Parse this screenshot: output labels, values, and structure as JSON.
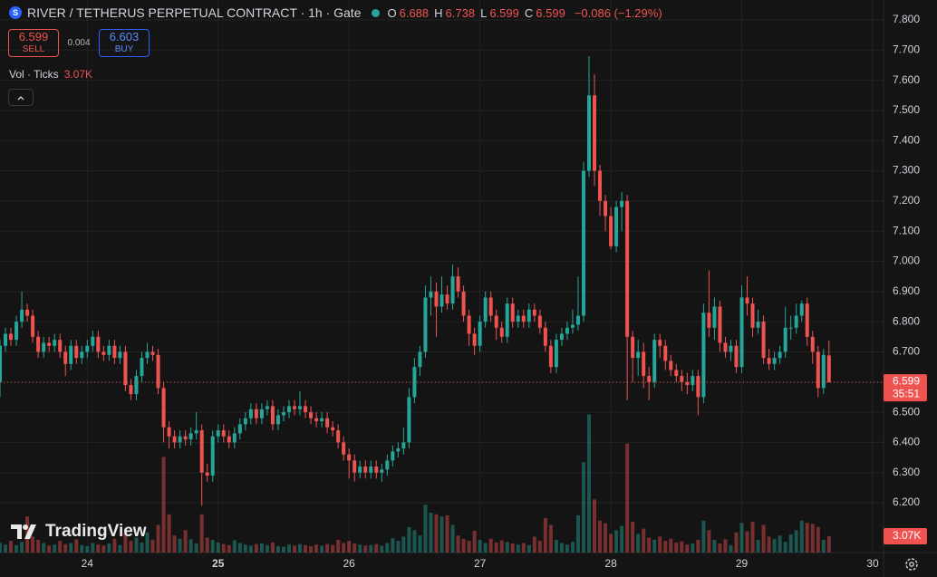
{
  "chart_data": {
    "type": "candlestick",
    "title": "RIVER / TETHERUS PERPETUAL CONTRACT · 1h · Gate",
    "ohlc_labels": [
      "O",
      "H",
      "L",
      "C"
    ],
    "change": "−0.086 (−1.29%)",
    "sell_price": 6.599,
    "sell_label": "SELL",
    "spread": 0.004,
    "buy_price": 6.603,
    "buy_label": "BUY",
    "volume_name": "Vol · Ticks",
    "volume_last_label": "3.07K",
    "countdown": "35:51",
    "brand": "TradingView",
    "up_color": "#26a69a",
    "down_color": "#ef5350",
    "open": [
      6.6,
      6.72,
      6.76,
      6.74,
      6.8,
      6.84,
      6.82,
      6.75,
      6.7,
      6.73,
      6.72,
      6.74,
      6.7,
      6.66,
      6.72,
      6.68,
      6.7,
      6.72,
      6.75,
      6.7,
      6.69,
      6.72,
      6.68,
      6.7,
      6.59,
      6.56,
      6.62,
      6.68,
      6.7,
      6.69,
      6.58,
      6.45,
      6.42,
      6.4,
      6.42,
      6.41,
      6.43,
      6.44,
      6.3,
      6.29,
      6.42,
      6.44,
      6.42,
      6.4,
      6.43,
      6.46,
      6.48,
      6.51,
      6.48,
      6.51,
      6.52,
      6.46,
      6.49,
      6.5,
      6.52,
      6.51,
      6.52,
      6.5,
      6.48,
      6.47,
      6.48,
      6.45,
      6.44,
      6.4,
      6.36,
      6.34,
      6.3,
      6.32,
      6.3,
      6.32,
      6.3,
      6.31,
      6.34,
      6.37,
      6.38,
      6.4,
      6.55,
      6.65,
      6.7,
      6.88,
      6.9,
      6.85,
      6.89,
      6.86,
      6.95,
      6.9,
      6.82,
      6.76,
      6.72,
      6.8,
      6.88,
      6.82,
      6.78,
      6.75,
      6.86,
      6.8,
      6.82,
      6.8,
      6.84,
      6.82,
      6.78,
      6.72,
      6.65,
      6.74,
      6.76,
      6.78,
      6.79,
      6.82,
      7.3,
      7.55,
      7.3,
      7.2,
      7.15,
      7.05,
      7.18,
      7.2,
      6.75,
      6.68,
      6.7,
      6.62,
      6.6,
      6.74,
      6.72,
      6.67,
      6.64,
      6.62,
      6.6,
      6.59,
      6.62,
      6.55,
      6.83,
      6.78,
      6.85,
      6.73,
      6.7,
      6.72,
      6.65,
      6.88,
      6.86,
      6.78,
      6.8,
      6.68,
      6.66,
      6.68,
      6.7,
      6.78,
      6.78,
      6.82,
      6.86,
      6.75,
      6.7,
      6.58,
      6.688
    ],
    "high": [
      6.74,
      6.78,
      6.78,
      6.82,
      6.9,
      6.86,
      6.84,
      6.77,
      6.75,
      6.75,
      6.76,
      6.76,
      6.72,
      6.74,
      6.74,
      6.72,
      6.74,
      6.77,
      6.77,
      6.72,
      6.74,
      6.74,
      6.72,
      6.72,
      6.61,
      6.64,
      6.7,
      6.73,
      6.72,
      6.71,
      6.6,
      6.47,
      6.44,
      6.44,
      6.44,
      6.45,
      6.5,
      6.46,
      6.33,
      6.44,
      6.46,
      6.46,
      6.44,
      6.45,
      6.48,
      6.5,
      6.53,
      6.53,
      6.53,
      6.54,
      6.54,
      6.51,
      6.52,
      6.54,
      6.54,
      6.57,
      6.54,
      6.52,
      6.5,
      6.5,
      6.5,
      6.47,
      6.46,
      6.42,
      6.38,
      6.36,
      6.34,
      6.34,
      6.34,
      6.34,
      6.33,
      6.36,
      6.39,
      6.4,
      6.45,
      6.58,
      6.68,
      6.72,
      6.92,
      6.95,
      6.93,
      6.95,
      6.92,
      6.99,
      6.98,
      6.92,
      6.84,
      6.78,
      6.82,
      6.9,
      6.9,
      6.84,
      6.8,
      6.88,
      6.88,
      6.84,
      6.84,
      6.86,
      6.86,
      6.84,
      6.8,
      6.74,
      6.76,
      6.78,
      6.8,
      6.84,
      6.95,
      7.33,
      7.68,
      7.62,
      7.32,
      7.22,
      7.18,
      7.2,
      7.23,
      7.22,
      6.77,
      6.74,
      6.73,
      6.65,
      6.76,
      6.76,
      6.74,
      6.69,
      6.66,
      6.64,
      6.63,
      6.64,
      6.64,
      6.86,
      6.97,
      6.88,
      6.87,
      6.75,
      6.74,
      6.74,
      6.92,
      6.95,
      6.88,
      6.84,
      6.82,
      6.71,
      6.7,
      6.72,
      6.85,
      6.82,
      6.86,
      6.87,
      6.88,
      6.77,
      6.72,
      6.71,
      6.738
    ],
    "low": [
      6.55,
      6.7,
      6.72,
      6.72,
      6.78,
      6.8,
      6.73,
      6.68,
      6.68,
      6.7,
      6.7,
      6.68,
      6.62,
      6.64,
      6.66,
      6.66,
      6.68,
      6.7,
      6.68,
      6.67,
      6.67,
      6.66,
      6.66,
      6.57,
      6.54,
      6.54,
      6.6,
      6.66,
      6.67,
      6.56,
      6.4,
      6.38,
      6.38,
      6.38,
      6.39,
      6.39,
      6.41,
      6.19,
      6.27,
      6.27,
      6.4,
      6.4,
      6.38,
      6.38,
      6.41,
      6.44,
      6.46,
      6.46,
      6.46,
      6.49,
      6.44,
      6.44,
      6.47,
      6.48,
      6.49,
      6.49,
      6.48,
      6.46,
      6.45,
      6.45,
      6.43,
      6.42,
      6.38,
      6.34,
      6.28,
      6.27,
      6.28,
      6.28,
      6.28,
      6.28,
      6.27,
      6.29,
      6.32,
      6.35,
      6.36,
      6.38,
      6.53,
      6.62,
      6.68,
      6.82,
      6.75,
      6.83,
      6.84,
      6.84,
      6.88,
      6.8,
      6.72,
      6.69,
      6.7,
      6.78,
      6.8,
      6.74,
      6.73,
      6.73,
      6.78,
      6.78,
      6.78,
      6.78,
      6.8,
      6.76,
      6.7,
      6.63,
      6.63,
      6.72,
      6.74,
      6.76,
      6.77,
      6.8,
      7.28,
      7.25,
      7.15,
      7.1,
      7.04,
      7.03,
      7.1,
      6.54,
      6.6,
      6.62,
      6.58,
      6.54,
      6.58,
      6.68,
      6.64,
      6.62,
      6.6,
      6.57,
      6.56,
      6.57,
      6.49,
      6.53,
      6.75,
      6.74,
      6.7,
      6.68,
      6.67,
      6.63,
      6.63,
      6.82,
      6.75,
      6.76,
      6.66,
      6.64,
      6.64,
      6.66,
      6.68,
      6.74,
      6.76,
      6.8,
      6.72,
      6.66,
      6.55,
      6.56,
      6.599
    ],
    "close": [
      6.72,
      6.76,
      6.74,
      6.8,
      6.84,
      6.82,
      6.75,
      6.7,
      6.73,
      6.72,
      6.74,
      6.7,
      6.66,
      6.72,
      6.68,
      6.7,
      6.72,
      6.75,
      6.7,
      6.69,
      6.72,
      6.68,
      6.7,
      6.59,
      6.56,
      6.62,
      6.68,
      6.7,
      6.69,
      6.58,
      6.45,
      6.42,
      6.4,
      6.42,
      6.41,
      6.43,
      6.44,
      6.3,
      6.29,
      6.42,
      6.44,
      6.42,
      6.4,
      6.43,
      6.46,
      6.48,
      6.51,
      6.48,
      6.51,
      6.52,
      6.46,
      6.49,
      6.5,
      6.52,
      6.51,
      6.52,
      6.5,
      6.48,
      6.47,
      6.48,
      6.45,
      6.44,
      6.4,
      6.36,
      6.34,
      6.3,
      6.32,
      6.3,
      6.32,
      6.3,
      6.31,
      6.34,
      6.37,
      6.38,
      6.4,
      6.55,
      6.65,
      6.7,
      6.88,
      6.9,
      6.85,
      6.89,
      6.86,
      6.95,
      6.9,
      6.82,
      6.76,
      6.72,
      6.8,
      6.88,
      6.82,
      6.78,
      6.75,
      6.86,
      6.8,
      6.82,
      6.8,
      6.84,
      6.82,
      6.78,
      6.72,
      6.65,
      6.74,
      6.76,
      6.78,
      6.79,
      6.82,
      7.3,
      7.55,
      7.3,
      7.2,
      7.15,
      7.05,
      7.18,
      7.2,
      6.75,
      6.68,
      6.7,
      6.62,
      6.6,
      6.74,
      6.72,
      6.67,
      6.64,
      6.62,
      6.6,
      6.59,
      6.62,
      6.55,
      6.83,
      6.78,
      6.85,
      6.73,
      6.7,
      6.72,
      6.65,
      6.88,
      6.86,
      6.78,
      6.8,
      6.68,
      6.66,
      6.68,
      6.7,
      6.78,
      6.78,
      6.82,
      6.86,
      6.75,
      6.7,
      6.58,
      6.69,
      6.599
    ],
    "volume": [
      1800,
      1500,
      2200,
      1400,
      2000,
      6800,
      3000,
      2400,
      1800,
      1300,
      1500,
      2200,
      1600,
      1800,
      2500,
      1400,
      1200,
      1800,
      1500,
      1300,
      1700,
      2600,
      1400,
      3600,
      2200,
      2800,
      1900,
      3800,
      2400,
      5200,
      18000,
      7200,
      3200,
      2600,
      4200,
      2500,
      1700,
      7200,
      2800,
      2400,
      1900,
      1600,
      1400,
      2300,
      1800,
      1500,
      1300,
      1600,
      1700,
      1400,
      1900,
      1200,
      1100,
      1500,
      1300,
      1600,
      1400,
      1200,
      1500,
      1300,
      1600,
      1400,
      2400,
      1800,
      2200,
      1700,
      1500,
      1300,
      1400,
      1600,
      1300,
      1800,
      2700,
      2200,
      3000,
      4800,
      4200,
      3200,
      9000,
      7500,
      7200,
      6800,
      7000,
      5200,
      3200,
      2600,
      2200,
      4100,
      2400,
      1800,
      2600,
      1900,
      2300,
      2000,
      1700,
      1500,
      1800,
      1400,
      3000,
      2200,
      6500,
      5200,
      2400,
      1800,
      1500,
      2000,
      7000,
      17000,
      26000,
      10000,
      6000,
      5500,
      3500,
      4200,
      5000,
      20500,
      5800,
      3500,
      4500,
      2800,
      2400,
      3000,
      2200,
      2600,
      1900,
      2100,
      1500,
      1700,
      2400,
      6000,
      4200,
      2400,
      1700,
      2500,
      1400,
      3800,
      5600,
      4000,
      5800,
      2400,
      5200,
      3000,
      2600,
      3200,
      2000,
      3400,
      4200,
      6000,
      5600,
      5400,
      4800,
      2400,
      3070
    ],
    "xlim": [
      0,
      162
    ],
    "xticks": [
      {
        "value": 16,
        "label": "24"
      },
      {
        "value": 40,
        "label": "25"
      },
      {
        "value": 64,
        "label": "26"
      },
      {
        "value": 88,
        "label": "27"
      },
      {
        "value": 112,
        "label": "28"
      },
      {
        "value": 136,
        "label": "29"
      },
      {
        "value": 160,
        "label": "30"
      }
    ],
    "ylim": [
      6.035,
      7.866
    ],
    "yticks": [
      {
        "value": 6.2,
        "label": "6.200"
      },
      {
        "value": 6.3,
        "label": "6.300"
      },
      {
        "value": 6.4,
        "label": "6.400"
      },
      {
        "value": 6.5,
        "label": "6.500"
      },
      {
        "value": 6.6,
        "label": "6.600"
      },
      {
        "value": 6.7,
        "label": "6.700"
      },
      {
        "value": 6.8,
        "label": "6.800"
      },
      {
        "value": 6.9,
        "label": "6.900"
      },
      {
        "value": 7.0,
        "label": "7.000"
      },
      {
        "value": 7.1,
        "label": "7.100"
      },
      {
        "value": 7.2,
        "label": "7.200"
      },
      {
        "value": 7.3,
        "label": "7.300"
      },
      {
        "value": 7.4,
        "label": "7.400"
      },
      {
        "value": 7.5,
        "label": "7.500"
      },
      {
        "value": 7.6,
        "label": "7.600"
      },
      {
        "value": 7.7,
        "label": "7.700"
      },
      {
        "value": 7.8,
        "label": "7.800"
      }
    ],
    "volume_ylim": [
      0,
      104000
    ],
    "grid": true
  }
}
